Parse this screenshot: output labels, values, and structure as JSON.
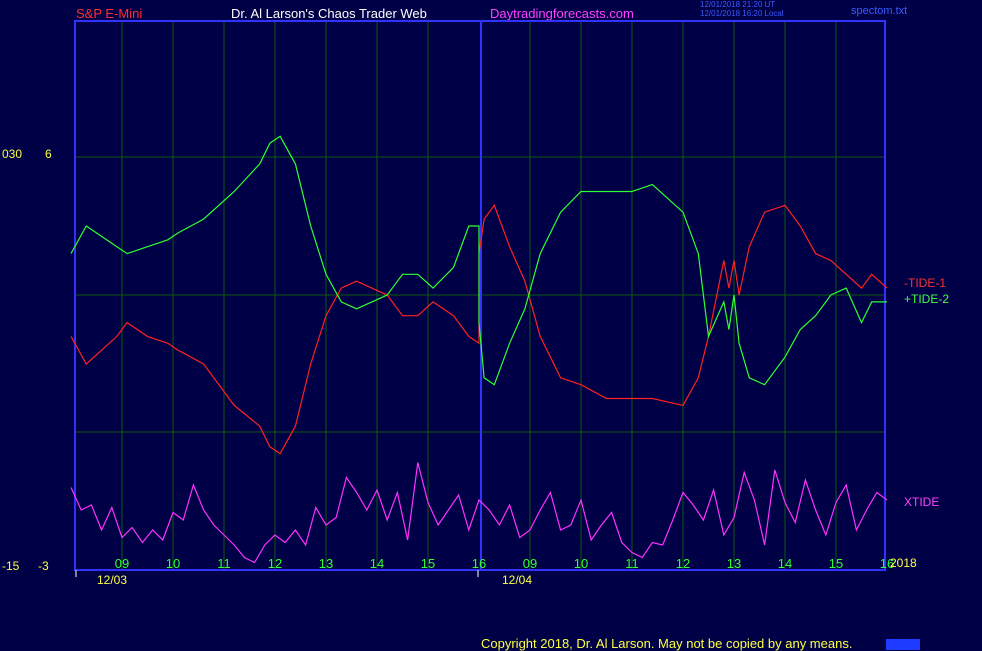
{
  "header": {
    "symbol": "S&P E-Mini",
    "title": "Dr. Al Larson's Chaos Trader Web",
    "site": "Daytradingforecasts.com",
    "timestamp_1": "12/01/2018 21:20 UT",
    "timestamp_2": "12/01/2018 16:20 Local",
    "file": "spectom.txt"
  },
  "axis_labels": {
    "left_top_a": "030",
    "left_top_b": "6",
    "left_bottom_a": "-15",
    "left_bottom_b": "-3",
    "year": "2018",
    "date_1": "12/03",
    "date_2": "12/04"
  },
  "copyright": "Copyright 2018, Dr. Al Larson. May not be copied by any means.",
  "colors": {
    "background": "#000046",
    "frame": "#3232ff",
    "grid": "#0c5a0c",
    "tide_1": "#ff2020",
    "tide_2": "#30ff30",
    "xtide": "#ff30ff",
    "hour_label": "#30ff30",
    "text_yellow": "#ffff40"
  },
  "chart_data": {
    "type": "line",
    "x_axis": {
      "unit": "hour",
      "hour_ticks": [
        "09",
        "10",
        "11",
        "12",
        "13",
        "14",
        "15",
        "16",
        "09",
        "10",
        "11",
        "12",
        "13",
        "14",
        "15",
        "16"
      ],
      "sessions": [
        "12/03",
        "12/04"
      ],
      "day_break_after_index": 7
    },
    "y_axis": {
      "top_labels": [
        "030",
        "6"
      ],
      "bottom_labels": [
        "-15",
        "-3"
      ]
    },
    "series": [
      {
        "name": "-TIDE-1",
        "panel": "upper",
        "x": [
          8.0,
          8.3,
          8.9,
          9.1,
          9.5,
          9.9,
          10.1,
          10.6,
          11.2,
          11.7,
          11.9,
          12.1,
          12.4,
          12.7,
          13.0,
          13.3,
          13.6,
          13.9,
          14.2,
          14.5,
          14.8,
          15.1,
          15.5,
          15.8,
          16.0,
          16.0,
          16.1,
          16.3,
          16.6,
          16.9,
          17.2,
          17.6,
          18.0,
          18.5,
          19.0,
          19.4,
          20.0,
          20.3,
          20.5,
          20.8,
          20.9,
          21.0,
          21.1,
          21.3,
          21.6,
          22.0,
          22.3,
          22.6,
          22.9,
          23.2,
          23.5,
          23.7,
          24.0
        ],
        "y": [
          -0.3,
          -0.5,
          -0.3,
          -0.2,
          -0.3,
          -0.35,
          -0.4,
          -0.5,
          -0.8,
          -0.95,
          -1.1,
          -1.15,
          -0.95,
          -0.5,
          -0.15,
          0.05,
          0.1,
          0.05,
          0.0,
          -0.15,
          -0.15,
          -0.05,
          -0.15,
          -0.3,
          -0.35,
          0.3,
          0.55,
          0.65,
          0.35,
          0.1,
          -0.3,
          -0.6,
          -0.65,
          -0.75,
          -0.75,
          -0.75,
          -0.8,
          -0.6,
          -0.3,
          0.25,
          0.05,
          0.25,
          0.0,
          0.35,
          0.6,
          0.65,
          0.5,
          0.3,
          0.25,
          0.15,
          0.05,
          0.15,
          0.05
        ]
      },
      {
        "name": "+TIDE-2",
        "panel": "upper",
        "x": [
          8.0,
          8.3,
          8.9,
          9.1,
          9.5,
          9.9,
          10.1,
          10.6,
          11.2,
          11.7,
          11.9,
          12.1,
          12.4,
          12.7,
          13.0,
          13.3,
          13.6,
          13.9,
          14.2,
          14.5,
          14.8,
          15.1,
          15.5,
          15.8,
          16.0,
          16.0,
          16.1,
          16.3,
          16.6,
          16.9,
          17.2,
          17.6,
          18.0,
          18.5,
          19.0,
          19.4,
          20.0,
          20.3,
          20.5,
          20.8,
          20.9,
          21.0,
          21.1,
          21.3,
          21.6,
          22.0,
          22.3,
          22.6,
          22.9,
          23.2,
          23.5,
          23.7,
          24.0
        ],
        "y": [
          0.3,
          0.5,
          0.35,
          0.3,
          0.35,
          0.4,
          0.45,
          0.55,
          0.75,
          0.95,
          1.1,
          1.15,
          0.95,
          0.5,
          0.15,
          -0.05,
          -0.1,
          -0.05,
          0.0,
          0.15,
          0.15,
          0.05,
          0.2,
          0.5,
          0.5,
          -0.2,
          -0.6,
          -0.65,
          -0.35,
          -0.1,
          0.3,
          0.6,
          0.75,
          0.75,
          0.75,
          0.8,
          0.6,
          0.3,
          -0.3,
          -0.05,
          -0.25,
          0.0,
          -0.35,
          -0.6,
          -0.65,
          -0.45,
          -0.25,
          -0.15,
          0.0,
          0.05,
          -0.2,
          -0.05,
          -0.05
        ]
      },
      {
        "name": "XTIDE",
        "panel": "lower",
        "x": [
          8.0,
          8.2,
          8.4,
          8.6,
          8.8,
          9.0,
          9.2,
          9.4,
          9.6,
          9.8,
          10.0,
          10.2,
          10.4,
          10.6,
          10.8,
          11.0,
          11.2,
          11.4,
          11.6,
          11.8,
          12.0,
          12.2,
          12.4,
          12.6,
          12.8,
          13.0,
          13.2,
          13.4,
          13.6,
          13.8,
          14.0,
          14.2,
          14.4,
          14.6,
          14.8,
          15.0,
          15.2,
          15.4,
          15.6,
          15.8,
          16.0,
          16.2,
          16.4,
          16.6,
          16.8,
          17.0,
          17.2,
          17.4,
          17.6,
          17.8,
          18.0,
          18.2,
          18.4,
          18.6,
          18.8,
          19.0,
          19.2,
          19.4,
          19.6,
          19.8,
          20.0,
          20.2,
          20.4,
          20.6,
          20.8,
          21.0,
          21.2,
          21.4,
          21.6,
          21.8,
          22.0,
          22.2,
          22.4,
          22.6,
          22.8,
          23.0,
          23.2,
          23.4,
          23.6,
          23.8,
          24.0
        ],
        "y": [
          0.55,
          0.1,
          0.2,
          -0.3,
          0.15,
          -0.45,
          -0.25,
          -0.55,
          -0.3,
          -0.5,
          0.05,
          -0.1,
          0.6,
          0.1,
          -0.2,
          -0.4,
          -0.6,
          -0.85,
          -0.95,
          -0.6,
          -0.4,
          -0.55,
          -0.3,
          -0.6,
          0.15,
          -0.2,
          -0.05,
          0.75,
          0.45,
          0.1,
          0.5,
          -0.1,
          0.45,
          -0.5,
          1.05,
          0.25,
          -0.2,
          0.1,
          0.4,
          -0.3,
          0.3,
          0.1,
          -0.2,
          0.2,
          -0.45,
          -0.3,
          0.1,
          0.45,
          -0.3,
          -0.2,
          0.3,
          -0.5,
          -0.2,
          0.05,
          -0.55,
          -0.75,
          -0.85,
          -0.55,
          -0.6,
          -0.1,
          0.45,
          0.2,
          -0.1,
          0.5,
          -0.4,
          -0.05,
          0.85,
          0.3,
          -0.6,
          0.9,
          0.25,
          -0.15,
          0.7,
          0.1,
          -0.4,
          0.25,
          0.6,
          -0.3,
          0.1,
          0.45,
          0.3
        ]
      }
    ]
  }
}
